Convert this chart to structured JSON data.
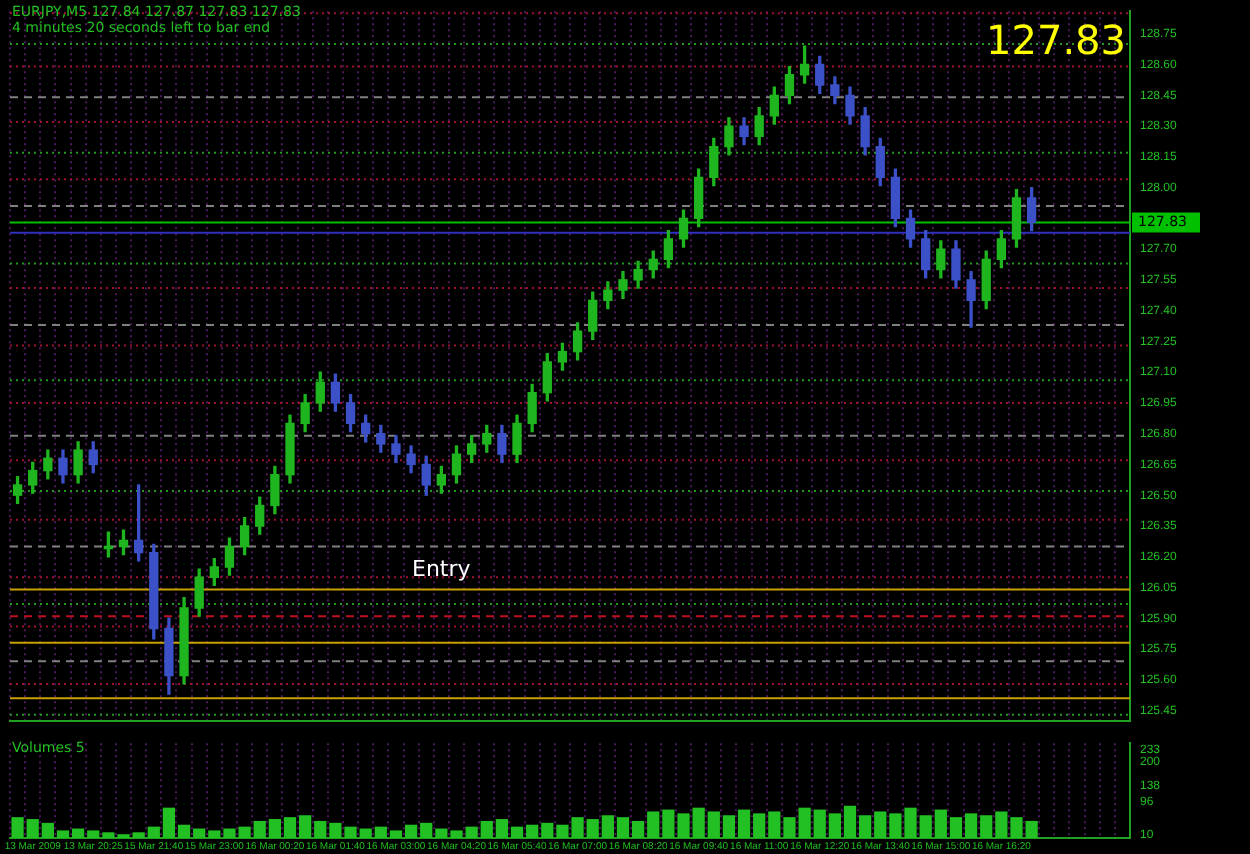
{
  "chart_data": [
    {
      "type": "candlestick",
      "title": "EURJPY,M5  127.84 127.87 127.83 127.83",
      "subtitle": "4 minutes 20 seconds left to bar end",
      "annotations": [
        "127.83",
        "Entry"
      ],
      "categories": [
        null,
        null,
        null,
        null,
        null,
        null,
        null,
        null,
        null,
        null,
        null,
        null,
        null,
        null,
        null,
        null,
        null,
        null,
        null,
        null,
        null,
        null,
        null,
        null,
        null,
        null,
        null,
        null,
        null,
        null,
        null,
        null,
        null,
        null,
        null,
        null,
        null,
        null,
        null,
        null,
        null,
        null,
        null,
        null,
        null,
        null,
        null,
        null,
        null,
        null,
        null,
        null,
        null,
        null,
        null,
        null,
        null,
        null,
        null,
        null,
        null,
        null,
        null,
        null,
        null,
        null,
        null,
        null,
        null,
        null,
        null,
        null,
        null,
        null
      ],
      "ohlc": [
        [
          126.5,
          126.59,
          126.46,
          126.55
        ],
        [
          126.55,
          126.66,
          126.51,
          126.62
        ],
        [
          126.62,
          126.72,
          126.58,
          126.68
        ],
        [
          126.68,
          126.72,
          126.56,
          126.6
        ],
        [
          126.6,
          126.76,
          126.56,
          126.72
        ],
        [
          126.72,
          126.76,
          126.61,
          126.65
        ],
        [
          126.24,
          126.32,
          126.2,
          126.25
        ],
        [
          126.25,
          126.33,
          126.21,
          126.28
        ],
        [
          126.28,
          126.55,
          126.18,
          126.22
        ],
        [
          126.22,
          126.26,
          125.8,
          125.85
        ],
        [
          125.85,
          125.9,
          125.53,
          125.62
        ],
        [
          125.62,
          126.0,
          125.58,
          125.95
        ],
        [
          125.95,
          126.14,
          125.91,
          126.1
        ],
        [
          126.1,
          126.19,
          126.06,
          126.15
        ],
        [
          126.15,
          126.29,
          126.11,
          126.25
        ],
        [
          126.25,
          126.39,
          126.21,
          126.35
        ],
        [
          126.35,
          126.49,
          126.31,
          126.45
        ],
        [
          126.45,
          126.64,
          126.41,
          126.6
        ],
        [
          126.6,
          126.89,
          126.56,
          126.85
        ],
        [
          126.85,
          126.99,
          126.81,
          126.95
        ],
        [
          126.95,
          127.1,
          126.91,
          127.05
        ],
        [
          127.05,
          127.09,
          126.91,
          126.95
        ],
        [
          126.95,
          126.99,
          126.81,
          126.85
        ],
        [
          126.85,
          126.89,
          126.76,
          126.8
        ],
        [
          126.8,
          126.84,
          126.71,
          126.75
        ],
        [
          126.75,
          126.79,
          126.66,
          126.7
        ],
        [
          126.7,
          126.74,
          126.61,
          126.65
        ],
        [
          126.65,
          126.69,
          126.5,
          126.55
        ],
        [
          126.55,
          126.64,
          126.51,
          126.6
        ],
        [
          126.6,
          126.74,
          126.56,
          126.7
        ],
        [
          126.7,
          126.79,
          126.66,
          126.75
        ],
        [
          126.75,
          126.84,
          126.71,
          126.8
        ],
        [
          126.8,
          126.84,
          126.66,
          126.7
        ],
        [
          126.7,
          126.89,
          126.66,
          126.85
        ],
        [
          126.85,
          127.04,
          126.81,
          127.0
        ],
        [
          127.0,
          127.19,
          126.96,
          127.15
        ],
        [
          127.15,
          127.24,
          127.11,
          127.2
        ],
        [
          127.2,
          127.34,
          127.16,
          127.3
        ],
        [
          127.3,
          127.49,
          127.26,
          127.45
        ],
        [
          127.45,
          127.54,
          127.41,
          127.5
        ],
        [
          127.5,
          127.59,
          127.46,
          127.55
        ],
        [
          127.55,
          127.64,
          127.51,
          127.6
        ],
        [
          127.6,
          127.69,
          127.56,
          127.65
        ],
        [
          127.65,
          127.79,
          127.61,
          127.75
        ],
        [
          127.75,
          127.89,
          127.71,
          127.85
        ],
        [
          127.85,
          128.09,
          127.81,
          128.05
        ],
        [
          128.05,
          128.24,
          128.01,
          128.2
        ],
        [
          128.2,
          128.34,
          128.16,
          128.3
        ],
        [
          128.3,
          128.34,
          128.21,
          128.25
        ],
        [
          128.25,
          128.39,
          128.21,
          128.35
        ],
        [
          128.35,
          128.49,
          128.31,
          128.45
        ],
        [
          128.45,
          128.59,
          128.41,
          128.55
        ],
        [
          128.55,
          128.69,
          128.51,
          128.6
        ],
        [
          128.6,
          128.64,
          128.46,
          128.5
        ],
        [
          128.5,
          128.54,
          128.41,
          128.45
        ],
        [
          128.45,
          128.49,
          128.31,
          128.35
        ],
        [
          128.35,
          128.39,
          128.16,
          128.2
        ],
        [
          128.2,
          128.24,
          128.01,
          128.05
        ],
        [
          128.05,
          128.09,
          127.81,
          127.85
        ],
        [
          127.85,
          127.89,
          127.71,
          127.75
        ],
        [
          127.75,
          127.79,
          127.56,
          127.6
        ],
        [
          127.6,
          127.74,
          127.56,
          127.7
        ],
        [
          127.7,
          127.74,
          127.51,
          127.55
        ],
        [
          127.55,
          127.59,
          127.32,
          127.45
        ],
        [
          127.45,
          127.69,
          127.41,
          127.65
        ],
        [
          127.65,
          127.79,
          127.61,
          127.75
        ],
        [
          127.75,
          127.99,
          127.71,
          127.95
        ],
        [
          127.95,
          128.0,
          127.79,
          127.83
        ],
        null,
        null,
        null,
        null,
        null,
        null
      ],
      "colors": [
        "#1fb51f",
        "#1fb51f",
        "#1fb51f",
        "#3c50c8",
        "#1fb51f",
        "#3c50c8",
        "#1fb51f",
        "#1fb51f",
        "#3c50c8",
        "#3c50c8",
        "#3c50c8",
        "#1fb51f",
        "#1fb51f",
        "#1fb51f",
        "#1fb51f",
        "#1fb51f",
        "#1fb51f",
        "#1fb51f",
        "#1fb51f",
        "#1fb51f",
        "#1fb51f",
        "#3c50c8",
        "#3c50c8",
        "#3c50c8",
        "#3c50c8",
        "#3c50c8",
        "#3c50c8",
        "#3c50c8",
        "#1fb51f",
        "#1fb51f",
        "#1fb51f",
        "#1fb51f",
        "#3c50c8",
        "#1fb51f",
        "#1fb51f",
        "#1fb51f",
        "#1fb51f",
        "#1fb51f",
        "#1fb51f",
        "#1fb51f",
        "#1fb51f",
        "#1fb51f",
        "#1fb51f",
        "#1fb51f",
        "#1fb51f",
        "#1fb51f",
        "#1fb51f",
        "#1fb51f",
        "#3c50c8",
        "#1fb51f",
        "#1fb51f",
        "#1fb51f",
        "#1fb51f",
        "#3c50c8",
        "#3c50c8",
        "#3c50c8",
        "#3c50c8",
        "#3c50c8",
        "#3c50c8",
        "#3c50c8",
        "#3c50c8",
        "#1fb51f",
        "#3c50c8",
        "#3c50c8",
        "#1fb51f",
        "#1fb51f",
        "#1fb51f",
        "#3c50c8",
        null,
        null,
        null,
        null,
        null,
        null
      ],
      "ylim": [
        125.4,
        128.86
      ],
      "yticks": [
        125.45,
        {
          "value": 125.6,
          "label": "125.60"
        },
        125.75,
        {
          "value": 125.9,
          "label": "125.90"
        },
        126.05,
        {
          "value": 126.2,
          "label": "126.20"
        },
        126.35,
        {
          "value": 126.5,
          "label": "126.50"
        },
        126.65,
        {
          "value": 126.8,
          "label": "126.80"
        },
        126.95,
        {
          "value": 127.1,
          "label": "127.10"
        },
        127.25,
        {
          "value": 127.4,
          "label": "127.40"
        },
        127.55,
        {
          "value": 127.7,
          "label": "127.70"
        },
        {
          "value": 128,
          "label": "128.00"
        },
        128.15,
        {
          "value": 128.3,
          "label": "128.30"
        },
        128.45,
        {
          "value": 128.6,
          "label": "128.60"
        },
        128.75
      ],
      "ref_lines": [
        {
          "axis": "y",
          "value": 127.83,
          "label": "127.83",
          "color": "#00c000"
        },
        {
          "axis": "y",
          "value": 128.85,
          "color": "#a01030",
          "line_style": "dotted"
        },
        {
          "axis": "y",
          "value": 128.7,
          "color": "#1f9a1f",
          "line_style": "dotted"
        },
        {
          "axis": "y",
          "value": 128.59,
          "color": "#a01030",
          "line_style": "dotted"
        },
        {
          "axis": "y",
          "value": 128.44,
          "color": "#808080",
          "line_style": "dashed"
        },
        {
          "axis": "y",
          "value": 128.32,
          "color": "#a01030",
          "line_style": "dotted"
        },
        {
          "axis": "y",
          "value": 128.17,
          "color": "#1f9a1f",
          "line_style": "dotted"
        },
        {
          "axis": "y",
          "value": 128.04,
          "color": "#a01030",
          "line_style": "dotted"
        },
        {
          "axis": "y",
          "value": 127.91,
          "color": "#808080",
          "line_style": "dashed"
        },
        {
          "axis": "y",
          "value": 127.78,
          "color": "#3030c0",
          "line_style": "solid"
        },
        {
          "axis": "y",
          "value": 127.63,
          "color": "#1f9a1f",
          "line_style": "dotted"
        },
        {
          "axis": "y",
          "value": 127.51,
          "color": "#a01030",
          "line_style": "dotted"
        },
        {
          "axis": "y",
          "value": 127.33,
          "color": "#808080",
          "line_style": "dashed"
        },
        {
          "axis": "y",
          "value": 127.23,
          "color": "#a01030",
          "line_style": "dotted"
        },
        {
          "axis": "y",
          "value": 127.06,
          "color": "#1f9a1f",
          "line_style": "dotted"
        },
        {
          "axis": "y",
          "value": 126.95,
          "color": "#a01030",
          "line_style": "dotted"
        },
        {
          "axis": "y",
          "value": 126.79,
          "color": "#808080",
          "line_style": "dashed"
        },
        {
          "axis": "y",
          "value": 126.67,
          "color": "#a01030",
          "line_style": "dotted"
        },
        {
          "axis": "y",
          "value": 126.52,
          "color": "#1f9a1f",
          "line_style": "dotted"
        },
        {
          "axis": "y",
          "value": 126.38,
          "color": "#a01030",
          "line_style": "dotted"
        },
        {
          "axis": "y",
          "value": 126.25,
          "color": "#808080",
          "line_style": "dashed"
        },
        {
          "axis": "y",
          "value": 126.1,
          "color": "#a01030",
          "line_style": "dotted"
        },
        {
          "axis": "y",
          "value": 126.04,
          "color": "#c8a000",
          "line_style": "solid"
        },
        {
          "axis": "y",
          "value": 125.97,
          "color": "#1f9a1f",
          "line_style": "dotted"
        },
        {
          "axis": "y",
          "value": 125.91,
          "color": "#c01020",
          "line_style": "dashed"
        },
        {
          "axis": "y",
          "value": 125.86,
          "color": "#a01030",
          "line_style": "dotted"
        },
        {
          "axis": "y",
          "value": 125.78,
          "color": "#c8a000",
          "line_style": "solid"
        },
        {
          "axis": "y",
          "value": 125.69,
          "color": "#808080",
          "line_style": "dashed"
        },
        {
          "axis": "y",
          "value": 125.58,
          "color": "#a01030",
          "line_style": "dotted"
        },
        {
          "axis": "y",
          "value": 125.51,
          "color": "#c8a000",
          "line_style": "solid"
        },
        {
          "axis": "y",
          "value": 125.43,
          "color": "#1f9a1f",
          "line_style": "dotted"
        }
      ],
      "grid": "x",
      "tick_labels": "y",
      "legend": false
    },
    {
      "type": "bar",
      "title": "Volumes 5",
      "categories": [
        null,
        "13 Mar 2009",
        null,
        null,
        null,
        "13 Mar 20:25",
        null,
        null,
        null,
        "15 Mar 21:40",
        null,
        null,
        null,
        "15 Mar 23:00",
        null,
        null,
        null,
        "16 Mar 00:20",
        null,
        null,
        null,
        "16 Mar 01:40",
        null,
        null,
        null,
        "16 Mar 03:00",
        null,
        null,
        null,
        "16 Mar 04:20",
        null,
        null,
        null,
        "16 Mar 05:40",
        null,
        null,
        null,
        "16 Mar 07:00",
        null,
        null,
        null,
        "16 Mar 08:20",
        null,
        null,
        null,
        "16 Mar 09:40",
        null,
        null,
        null,
        "16 Mar 11:00",
        null,
        null,
        null,
        "16 Mar 12:20",
        null,
        null,
        null,
        "16 Mar 13:40",
        null,
        null,
        null,
        "16 Mar 15:00",
        null,
        null,
        null,
        "16 Mar 16:20",
        null,
        null,
        null,
        null,
        null,
        null,
        null,
        null
      ],
      "values": [
        55,
        50,
        40,
        20,
        25,
        20,
        15,
        10,
        15,
        30,
        80,
        35,
        25,
        20,
        25,
        30,
        45,
        50,
        55,
        60,
        45,
        40,
        30,
        25,
        30,
        20,
        35,
        40,
        25,
        20,
        30,
        45,
        50,
        30,
        35,
        40,
        35,
        55,
        50,
        60,
        55,
        45,
        70,
        75,
        65,
        80,
        70,
        60,
        75,
        65,
        70,
        55,
        80,
        75,
        65,
        85,
        60,
        70,
        65,
        80,
        60,
        75,
        55,
        65,
        60,
        70,
        55,
        45,
        null,
        null,
        null,
        null,
        null,
        null
      ],
      "color": "#22c022",
      "ylim": [
        0,
        250
      ],
      "yticks": [
        10,
        96,
        138,
        200,
        233
      ],
      "grid": "x",
      "legend": false
    }
  ]
}
